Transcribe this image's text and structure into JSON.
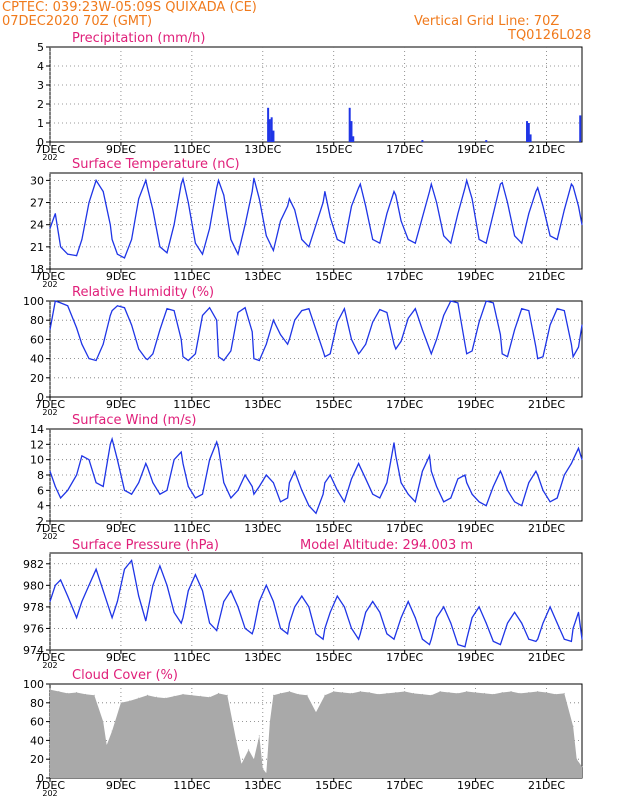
{
  "header": {
    "line1": "CPTEC:   039:23W-05:09S   QUIXADA (CE)",
    "line2": "07DEC2020 70Z (GMT)",
    "grid_note": "Vertical Grid Line: 70Z",
    "code": "TQ0126L028"
  },
  "colors": {
    "header": "#f07a1c",
    "panel_title": "#e0207a",
    "series": "#1f35e6",
    "cloud": "#a9a9a9",
    "axis": "#000000"
  },
  "x_axis": {
    "tick_labels": [
      "7DEC",
      "9DEC",
      "11DEC",
      "13DEC",
      "15DEC",
      "17DEC",
      "19DEC",
      "21DEC"
    ],
    "tick_days": [
      0,
      2,
      4,
      6,
      8,
      10,
      12,
      14
    ],
    "stub_label": "202",
    "range_days": [
      0,
      15
    ]
  },
  "chart_data": [
    {
      "type": "bar",
      "title": "Precipitation (mm/h)",
      "ylim": [
        0,
        5
      ],
      "yticks": [
        0,
        1,
        2,
        3,
        4,
        5
      ],
      "x": [
        6.15,
        6.2,
        6.25,
        6.3,
        8.45,
        8.5,
        8.55,
        13.45,
        13.5,
        13.55,
        14.95,
        10.5,
        12.3
      ],
      "values": [
        1.8,
        1.2,
        1.3,
        0.6,
        1.8,
        1.1,
        0.3,
        1.1,
        1.0,
        0.4,
        1.4,
        0.1,
        0.1
      ]
    },
    {
      "type": "line",
      "title": "Surface Temperature (nC)",
      "ylim": [
        18,
        31
      ],
      "yticks": [
        18,
        21,
        24,
        27,
        30
      ],
      "x": [
        0.0,
        0.15,
        0.3,
        0.5,
        0.75,
        0.9,
        1.1,
        1.3,
        1.5,
        1.7,
        1.75,
        1.9,
        2.1,
        2.3,
        2.5,
        2.7,
        2.75,
        2.9,
        3.1,
        3.3,
        3.5,
        3.7,
        3.75,
        3.9,
        4.1,
        4.3,
        4.5,
        4.7,
        4.75,
        4.9,
        5.1,
        5.3,
        5.5,
        5.7,
        5.75,
        5.9,
        6.1,
        6.3,
        6.5,
        6.7,
        6.75,
        6.9,
        7.1,
        7.3,
        7.5,
        7.7,
        7.75,
        7.9,
        8.1,
        8.3,
        8.5,
        8.7,
        8.75,
        8.9,
        9.1,
        9.3,
        9.5,
        9.7,
        9.75,
        9.9,
        10.1,
        10.3,
        10.5,
        10.7,
        10.75,
        10.9,
        11.1,
        11.3,
        11.5,
        11.7,
        11.75,
        11.9,
        12.1,
        12.3,
        12.5,
        12.7,
        12.75,
        12.9,
        13.1,
        13.3,
        13.5,
        13.7,
        13.75,
        13.9,
        14.1,
        14.3,
        14.5,
        14.7,
        14.75,
        14.9,
        15.0
      ],
      "values": [
        23.5,
        25.5,
        21.0,
        20.0,
        19.8,
        22.0,
        27.0,
        30.0,
        28.5,
        24.0,
        22.0,
        20.0,
        19.5,
        22.0,
        27.5,
        30.0,
        29.0,
        26.0,
        21.0,
        20.2,
        24.0,
        29.5,
        30.2,
        27.0,
        21.5,
        20.0,
        23.5,
        29.0,
        30.0,
        28.0,
        22.0,
        20.0,
        24.0,
        28.5,
        30.3,
        27.5,
        22.5,
        20.5,
        24.5,
        26.5,
        27.5,
        26.0,
        22.0,
        21.0,
        24.0,
        27.0,
        28.5,
        25.0,
        22.0,
        21.5,
        26.5,
        29.0,
        29.5,
        26.5,
        22.0,
        21.5,
        25.5,
        28.5,
        28.0,
        24.5,
        22.0,
        21.5,
        25.0,
        28.5,
        29.5,
        27.0,
        22.5,
        21.5,
        25.5,
        29.0,
        30.0,
        27.5,
        22.0,
        21.5,
        25.5,
        29.5,
        29.7,
        27.0,
        22.5,
        21.5,
        25.5,
        28.5,
        29.0,
        26.5,
        22.5,
        22.0,
        26.0,
        29.5,
        29.2,
        26.5,
        24.0
      ]
    },
    {
      "type": "line",
      "title": "Relative Humidity (%)",
      "ylim": [
        0,
        100
      ],
      "yticks": [
        0,
        20,
        40,
        60,
        80,
        100
      ],
      "x": [
        0.0,
        0.15,
        0.3,
        0.5,
        0.75,
        0.9,
        1.1,
        1.3,
        1.5,
        1.7,
        1.75,
        1.9,
        2.1,
        2.3,
        2.5,
        2.7,
        2.75,
        2.9,
        3.1,
        3.3,
        3.5,
        3.7,
        3.75,
        3.9,
        4.1,
        4.3,
        4.5,
        4.7,
        4.75,
        4.9,
        5.1,
        5.3,
        5.5,
        5.7,
        5.75,
        5.9,
        6.1,
        6.3,
        6.5,
        6.7,
        6.75,
        6.9,
        7.1,
        7.3,
        7.5,
        7.7,
        7.75,
        7.9,
        8.1,
        8.3,
        8.5,
        8.7,
        8.75,
        8.9,
        9.1,
        9.3,
        9.5,
        9.7,
        9.75,
        9.9,
        10.1,
        10.3,
        10.5,
        10.7,
        10.75,
        10.9,
        11.1,
        11.3,
        11.5,
        11.7,
        11.75,
        11.9,
        12.1,
        12.3,
        12.5,
        12.7,
        12.75,
        12.9,
        13.1,
        13.3,
        13.5,
        13.7,
        13.75,
        13.9,
        14.1,
        14.3,
        14.5,
        14.7,
        14.75,
        14.9,
        15.0
      ],
      "values": [
        70,
        100,
        98,
        95,
        72,
        55,
        40,
        38,
        55,
        85,
        90,
        95,
        93,
        75,
        50,
        40,
        39,
        45,
        70,
        92,
        90,
        60,
        42,
        38,
        45,
        85,
        93,
        80,
        42,
        38,
        48,
        88,
        93,
        68,
        40,
        38,
        55,
        80,
        65,
        55,
        60,
        80,
        90,
        92,
        70,
        48,
        42,
        45,
        78,
        92,
        60,
        45,
        47,
        55,
        78,
        91,
        88,
        55,
        50,
        58,
        82,
        92,
        70,
        50,
        45,
        60,
        85,
        100,
        98,
        55,
        45,
        48,
        78,
        100,
        98,
        65,
        45,
        42,
        70,
        92,
        90,
        52,
        40,
        42,
        75,
        92,
        90,
        55,
        42,
        52,
        75
      ]
    },
    {
      "type": "line",
      "title": "Surface Wind (m/s)",
      "ylim": [
        2,
        14
      ],
      "yticks": [
        2,
        4,
        6,
        8,
        10,
        12,
        14
      ],
      "x": [
        0.0,
        0.15,
        0.3,
        0.5,
        0.75,
        0.9,
        1.1,
        1.3,
        1.5,
        1.7,
        1.75,
        1.9,
        2.1,
        2.3,
        2.5,
        2.7,
        2.75,
        2.9,
        3.1,
        3.3,
        3.5,
        3.7,
        3.75,
        3.9,
        4.1,
        4.3,
        4.5,
        4.7,
        4.75,
        4.9,
        5.1,
        5.3,
        5.5,
        5.7,
        5.75,
        5.9,
        6.1,
        6.3,
        6.5,
        6.7,
        6.75,
        6.9,
        7.1,
        7.3,
        7.5,
        7.7,
        7.75,
        7.9,
        8.1,
        8.3,
        8.5,
        8.7,
        8.75,
        8.9,
        9.1,
        9.3,
        9.5,
        9.7,
        9.75,
        9.9,
        10.1,
        10.3,
        10.5,
        10.7,
        10.75,
        10.9,
        11.1,
        11.3,
        11.5,
        11.7,
        11.75,
        11.9,
        12.1,
        12.3,
        12.5,
        12.7,
        12.75,
        12.9,
        13.1,
        13.3,
        13.5,
        13.7,
        13.75,
        13.9,
        14.1,
        14.3,
        14.5,
        14.7,
        14.75,
        14.9,
        15.0
      ],
      "values": [
        8.5,
        6.5,
        5.0,
        6.0,
        8.0,
        10.5,
        10.0,
        7.0,
        6.5,
        12.0,
        12.7,
        10.0,
        6.0,
        5.5,
        7.0,
        9.5,
        9.0,
        7.0,
        5.5,
        6.0,
        10.0,
        11.0,
        9.5,
        6.5,
        5.0,
        5.5,
        10.0,
        12.3,
        11.5,
        7.0,
        5.0,
        6.0,
        8.0,
        6.5,
        5.5,
        6.5,
        8.0,
        7.0,
        4.5,
        5.0,
        7.0,
        8.5,
        6.0,
        4.0,
        3.0,
        5.5,
        7.0,
        8.0,
        6.0,
        4.5,
        7.5,
        9.5,
        9.0,
        7.5,
        5.5,
        5.0,
        7.0,
        12.2,
        10.5,
        7.0,
        5.5,
        4.5,
        8.5,
        10.5,
        8.5,
        6.5,
        4.5,
        5.0,
        7.5,
        8.0,
        7.0,
        5.5,
        4.5,
        4.0,
        6.5,
        8.5,
        8.0,
        6.0,
        4.5,
        4.0,
        7.0,
        8.5,
        8.0,
        6.0,
        4.5,
        5.0,
        8.0,
        9.5,
        10.0,
        11.5,
        10.0
      ]
    },
    {
      "type": "line",
      "title": "Surface Pressure (hPa)",
      "annotation": "Model Altitude: 294.003 m",
      "ylim": [
        974,
        983
      ],
      "yticks": [
        974,
        976,
        978,
        980,
        982
      ],
      "x": [
        0.0,
        0.15,
        0.3,
        0.5,
        0.75,
        0.9,
        1.1,
        1.3,
        1.5,
        1.7,
        1.75,
        1.9,
        2.1,
        2.3,
        2.5,
        2.7,
        2.75,
        2.9,
        3.1,
        3.3,
        3.5,
        3.7,
        3.75,
        3.9,
        4.1,
        4.3,
        4.5,
        4.7,
        4.75,
        4.9,
        5.1,
        5.3,
        5.5,
        5.7,
        5.75,
        5.9,
        6.1,
        6.3,
        6.5,
        6.7,
        6.75,
        6.9,
        7.1,
        7.3,
        7.5,
        7.7,
        7.75,
        7.9,
        8.1,
        8.3,
        8.5,
        8.7,
        8.75,
        8.9,
        9.1,
        9.3,
        9.5,
        9.7,
        9.75,
        9.9,
        10.1,
        10.3,
        10.5,
        10.7,
        10.75,
        10.9,
        11.1,
        11.3,
        11.5,
        11.7,
        11.75,
        11.9,
        12.1,
        12.3,
        12.5,
        12.7,
        12.75,
        12.9,
        13.1,
        13.3,
        13.5,
        13.7,
        13.75,
        13.9,
        14.1,
        14.3,
        14.5,
        14.7,
        14.75,
        14.9,
        15.0
      ],
      "values": [
        978.5,
        980.0,
        980.5,
        979.0,
        977.0,
        978.5,
        980.0,
        981.5,
        979.5,
        977.5,
        977.0,
        978.5,
        981.5,
        982.3,
        979.0,
        976.7,
        977.5,
        980.0,
        981.8,
        980.0,
        977.5,
        976.5,
        977.0,
        979.5,
        981.0,
        979.5,
        976.5,
        975.8,
        976.5,
        978.5,
        979.5,
        978.0,
        976.0,
        975.5,
        976.0,
        978.5,
        980.0,
        978.5,
        976.0,
        975.5,
        976.5,
        978.0,
        979.0,
        978.0,
        975.5,
        975.0,
        976.0,
        977.5,
        979.0,
        978.0,
        976.0,
        975.0,
        975.5,
        977.5,
        978.5,
        977.5,
        975.5,
        975.0,
        975.5,
        977.0,
        978.5,
        977.0,
        975.0,
        974.5,
        975.0,
        977.0,
        978.0,
        976.5,
        974.5,
        974.3,
        975.0,
        977.0,
        978.0,
        976.5,
        974.8,
        974.5,
        975.0,
        976.5,
        977.5,
        976.5,
        975.0,
        974.8,
        975.0,
        976.5,
        978.0,
        976.5,
        975.0,
        974.8,
        976.0,
        977.5,
        975.0
      ]
    },
    {
      "type": "area",
      "title": "Cloud Cover (%)",
      "ylim": [
        0,
        100
      ],
      "yticks": [
        0,
        20,
        40,
        60,
        80,
        100
      ],
      "x": [
        0.0,
        0.25,
        0.5,
        0.75,
        1.0,
        1.25,
        1.5,
        1.6,
        1.75,
        2.0,
        2.25,
        2.5,
        2.75,
        3.0,
        3.25,
        3.5,
        3.75,
        4.0,
        4.25,
        4.5,
        4.75,
        5.0,
        5.25,
        5.4,
        5.6,
        5.75,
        5.9,
        6.0,
        6.1,
        6.2,
        6.3,
        6.5,
        6.75,
        7.0,
        7.25,
        7.5,
        7.75,
        8.0,
        8.25,
        8.5,
        8.75,
        9.0,
        9.25,
        9.5,
        9.75,
        10.0,
        10.25,
        10.5,
        10.75,
        11.0,
        11.25,
        11.5,
        11.75,
        12.0,
        12.25,
        12.5,
        12.75,
        13.0,
        13.25,
        13.5,
        13.75,
        14.0,
        14.25,
        14.5,
        14.75,
        14.85,
        15.0
      ],
      "values": [
        94,
        92,
        90,
        91,
        89,
        88,
        60,
        35,
        50,
        80,
        82,
        85,
        88,
        86,
        85,
        87,
        89,
        88,
        87,
        86,
        90,
        88,
        40,
        15,
        30,
        20,
        45,
        10,
        5,
        60,
        88,
        90,
        92,
        89,
        88,
        70,
        88,
        92,
        91,
        90,
        92,
        91,
        89,
        90,
        91,
        92,
        90,
        89,
        88,
        92,
        91,
        90,
        92,
        91,
        90,
        89,
        91,
        92,
        90,
        91,
        92,
        91,
        89,
        90,
        55,
        20,
        12
      ]
    }
  ]
}
